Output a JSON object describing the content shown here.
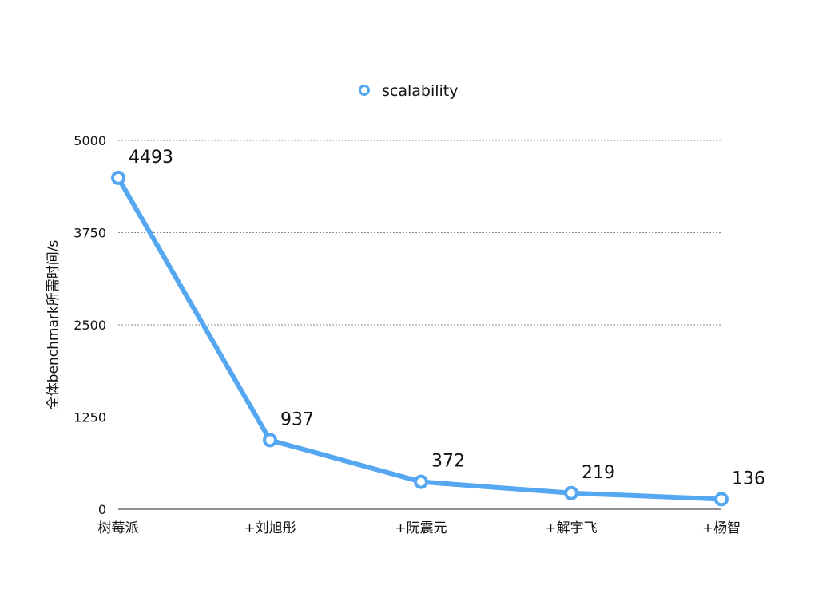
{
  "chart_data": {
    "type": "line",
    "title": "",
    "xlabel": "",
    "ylabel": "全体benchmark所需时间/s",
    "categories": [
      "树莓派",
      "+刘旭彤",
      "+阮震元",
      "+解宇飞",
      "+杨智"
    ],
    "series": [
      {
        "name": "scalability",
        "values": [
          4493,
          937,
          372,
          219,
          136
        ],
        "color": "#55a7f2"
      }
    ],
    "ylim": [
      0,
      5000
    ],
    "yticks": [
      0,
      1250,
      2500,
      3750,
      5000
    ],
    "grid": true,
    "legend": "top-center",
    "data_labels": true
  }
}
